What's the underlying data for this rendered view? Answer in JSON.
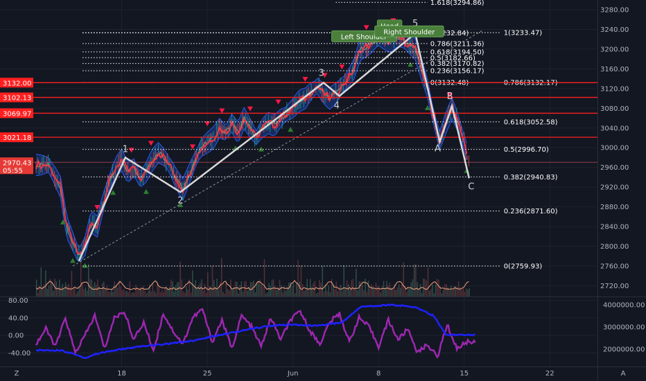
{
  "chart_data": {
    "type": "line",
    "title": "",
    "symbol": "",
    "x_ticks": [
      "18",
      "25",
      "Jun",
      "8",
      "15",
      "22"
    ],
    "y_ticks": [
      "3280.00",
      "3240.00",
      "3200.00",
      "3160.00",
      "3120.00",
      "3080.00",
      "3040.00",
      "3000.00",
      "2960.00",
      "2920.00",
      "2880.00",
      "2840.00",
      "2800.00",
      "2760.00",
      "2720.00"
    ],
    "ylim": [
      2720,
      3290
    ],
    "xlim": [
      11,
      26
    ],
    "current_price": {
      "label": "2970.43",
      "countdown": "05:55",
      "value": 2970.43
    },
    "price_path": [
      {
        "x": 12.0,
        "y": 2965
      },
      {
        "x": 12.5,
        "y": 2945
      },
      {
        "x": 13.0,
        "y": 2920
      },
      {
        "x": 13.5,
        "y": 2840
      },
      {
        "x": 14.0,
        "y": 2810
      },
      {
        "x": 14.5,
        "y": 2780
      },
      {
        "x": 15.0,
        "y": 2800
      },
      {
        "x": 15.5,
        "y": 2850
      },
      {
        "x": 16.0,
        "y": 2840
      },
      {
        "x": 16.5,
        "y": 2890
      },
      {
        "x": 17.0,
        "y": 2930
      },
      {
        "x": 17.5,
        "y": 2960
      },
      {
        "x": 18.0,
        "y": 2975
      },
      {
        "x": 18.5,
        "y": 2950
      },
      {
        "x": 19.0,
        "y": 2960
      },
      {
        "x": 19.5,
        "y": 2935
      },
      {
        "x": 20.0,
        "y": 2950
      },
      {
        "x": 20.5,
        "y": 2975
      },
      {
        "x": 21.0,
        "y": 2990
      },
      {
        "x": 21.5,
        "y": 2980
      },
      {
        "x": 22.0,
        "y": 2960
      },
      {
        "x": 22.5,
        "y": 2935
      },
      {
        "x": 23.0,
        "y": 2915
      },
      {
        "x": 23.5,
        "y": 2945
      },
      {
        "x": 24.0,
        "y": 2975
      },
      {
        "x": 24.5,
        "y": 3000
      },
      {
        "x": 25.0,
        "y": 3010
      },
      {
        "x": 25.5,
        "y": 3020
      },
      {
        "x": 26.0,
        "y": 3040
      },
      {
        "x": 26.5,
        "y": 3030
      },
      {
        "x": 27.0,
        "y": 3050
      },
      {
        "x": 27.5,
        "y": 3030
      },
      {
        "x": 28.0,
        "y": 3060
      },
      {
        "x": 28.5,
        "y": 3040
      },
      {
        "x": 29.0,
        "y": 3020
      },
      {
        "x": 29.5,
        "y": 3040
      },
      {
        "x": 30.0,
        "y": 3050
      },
      {
        "x": 30.5,
        "y": 3045
      },
      {
        "x": 31.0,
        "y": 3060
      },
      {
        "x": 31.5,
        "y": 3070
      },
      {
        "x": 32.0,
        "y": 3080
      },
      {
        "x": 32.5,
        "y": 3095
      },
      {
        "x": 33.0,
        "y": 3100
      },
      {
        "x": 33.5,
        "y": 3115
      },
      {
        "x": 34.0,
        "y": 3125
      },
      {
        "x": 34.5,
        "y": 3110
      },
      {
        "x": 35.0,
        "y": 3100
      },
      {
        "x": 35.5,
        "y": 3110
      },
      {
        "x": 36.0,
        "y": 3125
      },
      {
        "x": 36.5,
        "y": 3140
      },
      {
        "x": 37.0,
        "y": 3160
      },
      {
        "x": 37.5,
        "y": 3200
      },
      {
        "x": 38.0,
        "y": 3205
      },
      {
        "x": 38.5,
        "y": 3210
      },
      {
        "x": 39.0,
        "y": 3225
      },
      {
        "x": 39.5,
        "y": 3220
      },
      {
        "x": 40.0,
        "y": 3215
      },
      {
        "x": 40.5,
        "y": 3225
      },
      {
        "x": 41.0,
        "y": 3218
      },
      {
        "x": 41.5,
        "y": 3210
      },
      {
        "x": 42.0,
        "y": 3200
      },
      {
        "x": 42.5,
        "y": 3160
      },
      {
        "x": 43.0,
        "y": 3120
      },
      {
        "x": 43.5,
        "y": 3060
      },
      {
        "x": 44.0,
        "y": 3015
      },
      {
        "x": 44.5,
        "y": 3050
      },
      {
        "x": 45.0,
        "y": 3080
      },
      {
        "x": 45.5,
        "y": 3050
      },
      {
        "x": 46.0,
        "y": 3010
      },
      {
        "x": 46.4,
        "y": 2975
      }
    ],
    "sr_levels": [
      {
        "label": "3132.00",
        "value": 3132.0
      },
      {
        "label": "3102.13",
        "value": 3102.13
      },
      {
        "label": "3069.97",
        "value": 3069.97
      },
      {
        "label": "3021.18",
        "value": 3021.18
      }
    ],
    "fib_retracement_1": {
      "x_start": 14.8,
      "x_end": 43.0,
      "levels": [
        {
          "label": "1(3232.84)",
          "value": 3232.84
        },
        {
          "label": "0.786(3211.36)",
          "value": 3211.36
        },
        {
          "label": "0.618(3194.50)",
          "value": 3194.5
        },
        {
          "label": "0.5(3182.66)",
          "value": 3182.66
        },
        {
          "label": "0.382(3170.82)",
          "value": 3170.82
        },
        {
          "label": "0.236(3156.17)",
          "value": 3156.17
        },
        {
          "label": "0(3132.48)",
          "value": 3132.48
        }
      ]
    },
    "fib_extension_top": {
      "label": "1.618(3294.86)",
      "value": 3294.86
    },
    "fib_retracement_2": {
      "x_start": 14.8,
      "x_end": 49.0,
      "levels": [
        {
          "label": "1(3233.47)",
          "value": 3233.47
        },
        {
          "label": "0.786(3132.17)",
          "value": 3132.17
        },
        {
          "label": "0.618(3052.58)",
          "value": 3052.58
        },
        {
          "label": "0.5(2996.70)",
          "value": 2996.7
        },
        {
          "label": "0.382(2940.83)",
          "value": 2940.83
        },
        {
          "label": "0.236(2871.60)",
          "value": 2871.6
        },
        {
          "label": "0(2759.93)",
          "value": 2759.93
        }
      ]
    },
    "elliott_wave": [
      {
        "label": "",
        "x": 14.5,
        "y": 2770
      },
      {
        "label": "1",
        "x": 18.3,
        "y": 2980
      },
      {
        "label": "2",
        "x": 22.8,
        "y": 2910
      },
      {
        "label": "3",
        "x": 34.5,
        "y": 3132
      },
      {
        "label": "4",
        "x": 35.8,
        "y": 3105
      },
      {
        "label": "5",
        "x": 42.0,
        "y": 3232
      }
    ],
    "abc_wave": [
      {
        "label": "",
        "x": 42.0,
        "y": 3232
      },
      {
        "label": "A",
        "x": 44.0,
        "y": 3012
      },
      {
        "label": "B",
        "x": 45.0,
        "y": 3085
      },
      {
        "label": "C",
        "x": 46.4,
        "y": 2938
      }
    ],
    "head_shoulders": [
      {
        "label": "Left Shoulder",
        "x": 37.8,
        "y": 3226
      },
      {
        "label": "Head",
        "x": 39.9,
        "y": 3248
      },
      {
        "label": "Right Shoulder",
        "x": 41.5,
        "y": 3236
      }
    ],
    "trendline": {
      "x1": 14.0,
      "y1": 2760,
      "x2": 47.5,
      "y2": 3238
    },
    "oscillator": {
      "y_ticks": [
        "80.00",
        "40.00",
        "0.00",
        "-40.00"
      ],
      "ylim": [
        -65,
        90
      ],
      "right_ticks": [
        "4000000.00",
        "3000000.00",
        "2000000.00"
      ],
      "right_lim": [
        1550000,
        4300000
      ],
      "blue_line": [
        {
          "x": 11.0,
          "y": 1950000
        },
        {
          "x": 13.0,
          "y": 1950000
        },
        {
          "x": 14.0,
          "y": 1800000
        },
        {
          "x": 15.0,
          "y": 1600000
        },
        {
          "x": 16.0,
          "y": 1800000
        },
        {
          "x": 18.0,
          "y": 2000000
        },
        {
          "x": 20.0,
          "y": 2150000
        },
        {
          "x": 22.0,
          "y": 2250000
        },
        {
          "x": 24.0,
          "y": 2400000
        },
        {
          "x": 26.0,
          "y": 2650000
        },
        {
          "x": 28.0,
          "y": 2850000
        },
        {
          "x": 30.0,
          "y": 3050000
        },
        {
          "x": 32.0,
          "y": 3100000
        },
        {
          "x": 34.0,
          "y": 3050000
        },
        {
          "x": 36.0,
          "y": 3200000
        },
        {
          "x": 37.5,
          "y": 3900000
        },
        {
          "x": 40.0,
          "y": 4000000
        },
        {
          "x": 42.0,
          "y": 3900000
        },
        {
          "x": 43.5,
          "y": 3500000
        },
        {
          "x": 44.5,
          "y": 2650000
        },
        {
          "x": 47.0,
          "y": 2650000
        }
      ],
      "purple_line": [
        {
          "x": 11.0,
          "y": -20
        },
        {
          "x": 11.8,
          "y": 15
        },
        {
          "x": 12.6,
          "y": -25
        },
        {
          "x": 13.4,
          "y": 40
        },
        {
          "x": 14.2,
          "y": -40
        },
        {
          "x": 15.0,
          "y": 0
        },
        {
          "x": 15.8,
          "y": 45
        },
        {
          "x": 16.6,
          "y": -30
        },
        {
          "x": 17.4,
          "y": 40
        },
        {
          "x": 18.2,
          "y": 55
        },
        {
          "x": 19.0,
          "y": -10
        },
        {
          "x": 19.8,
          "y": 30
        },
        {
          "x": 20.6,
          "y": -35
        },
        {
          "x": 21.4,
          "y": 50
        },
        {
          "x": 22.2,
          "y": 10
        },
        {
          "x": 23.0,
          "y": -20
        },
        {
          "x": 23.8,
          "y": 40
        },
        {
          "x": 24.6,
          "y": 60
        },
        {
          "x": 25.4,
          "y": -15
        },
        {
          "x": 26.2,
          "y": 35
        },
        {
          "x": 27.0,
          "y": -30
        },
        {
          "x": 27.8,
          "y": 45
        },
        {
          "x": 28.6,
          "y": 20
        },
        {
          "x": 29.4,
          "y": -25
        },
        {
          "x": 30.2,
          "y": 40
        },
        {
          "x": 31.0,
          "y": -10
        },
        {
          "x": 31.8,
          "y": 35
        },
        {
          "x": 32.6,
          "y": 55
        },
        {
          "x": 33.4,
          "y": 10
        },
        {
          "x": 34.2,
          "y": -20
        },
        {
          "x": 35.0,
          "y": 30
        },
        {
          "x": 35.8,
          "y": 50
        },
        {
          "x": 36.6,
          "y": -15
        },
        {
          "x": 37.4,
          "y": 40
        },
        {
          "x": 38.2,
          "y": 20
        },
        {
          "x": 39.0,
          "y": -25
        },
        {
          "x": 39.8,
          "y": 35
        },
        {
          "x": 40.6,
          "y": -10
        },
        {
          "x": 41.4,
          "y": 15
        },
        {
          "x": 42.2,
          "y": -40
        },
        {
          "x": 43.0,
          "y": -20
        },
        {
          "x": 43.8,
          "y": -50
        },
        {
          "x": 44.6,
          "y": 25
        },
        {
          "x": 45.4,
          "y": -30
        },
        {
          "x": 46.2,
          "y": -15
        },
        {
          "x": 47.0,
          "y": -15
        }
      ]
    }
  },
  "ui": {
    "timezone_icon": "Z",
    "auto_scale_icon": "A"
  },
  "colors": {
    "background": "#131722",
    "sr_line": "#ff1f1f",
    "wave": "#d9d9d9",
    "price": "#f23645",
    "band": "#2962ff",
    "oscillator_blue": "#1e22ff",
    "oscillator_purple": "#9c27b0"
  }
}
